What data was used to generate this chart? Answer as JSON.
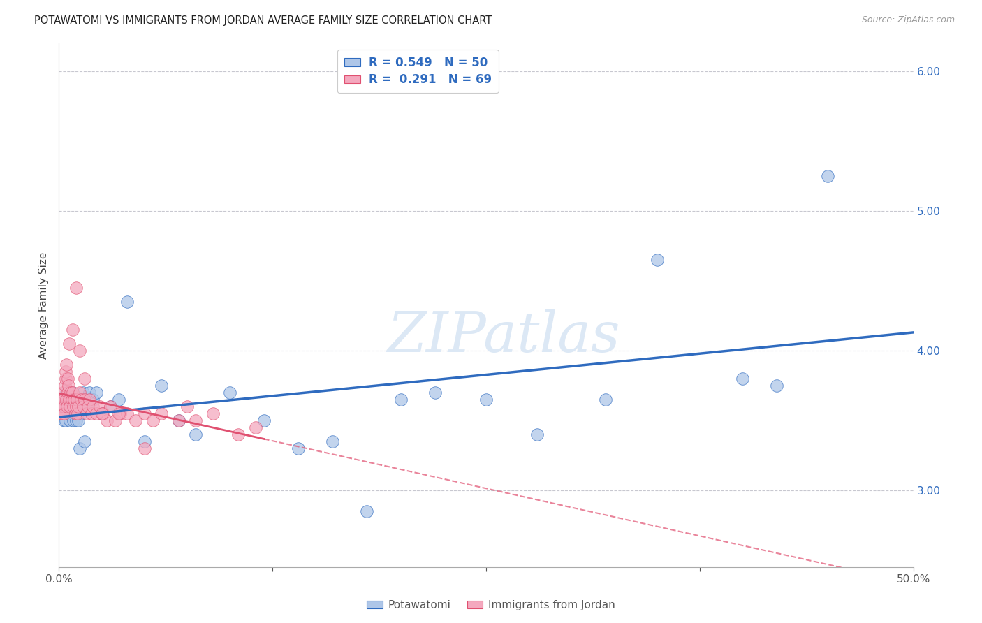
{
  "title": "POTAWATOMI VS IMMIGRANTS FROM JORDAN AVERAGE FAMILY SIZE CORRELATION CHART",
  "source": "Source: ZipAtlas.com",
  "ylabel": "Average Family Size",
  "xlim": [
    0.0,
    50.0
  ],
  "ylim": [
    2.45,
    6.2
  ],
  "yticks": [
    3.0,
    4.0,
    5.0,
    6.0
  ],
  "blue_R": "0.549",
  "blue_N": "50",
  "pink_R": "0.291",
  "pink_N": "69",
  "legend_label_blue": "Potawatomi",
  "legend_label_pink": "Immigrants from Jordan",
  "blue_color": "#aec6e8",
  "blue_line_color": "#2f6bbf",
  "pink_color": "#f4a8be",
  "pink_line_color": "#e05070",
  "watermark_color": "#dce8f5",
  "background_color": "#ffffff",
  "blue_scatter_x": [
    0.15,
    0.25,
    0.3,
    0.35,
    0.4,
    0.45,
    0.5,
    0.55,
    0.6,
    0.65,
    0.7,
    0.75,
    0.8,
    0.85,
    0.9,
    0.95,
    1.0,
    1.05,
    1.1,
    1.15,
    1.2,
    1.3,
    1.4,
    1.5,
    1.6,
    1.8,
    2.0,
    2.2,
    2.5,
    3.0,
    3.5,
    4.0,
    5.0,
    6.0,
    7.0,
    8.0,
    10.0,
    12.0,
    14.0,
    16.0,
    18.0,
    20.0,
    22.0,
    25.0,
    28.0,
    32.0,
    35.0,
    40.0,
    42.0,
    45.0
  ],
  "blue_scatter_y": [
    3.55,
    3.65,
    3.5,
    3.6,
    3.5,
    3.7,
    3.6,
    3.55,
    3.65,
    3.5,
    3.6,
    3.55,
    3.7,
    3.5,
    3.6,
    3.55,
    3.5,
    3.6,
    3.55,
    3.5,
    3.3,
    3.55,
    3.7,
    3.35,
    3.6,
    3.7,
    3.65,
    3.7,
    3.55,
    3.6,
    3.65,
    4.35,
    3.35,
    3.75,
    3.5,
    3.4,
    3.7,
    3.5,
    3.3,
    3.35,
    2.85,
    3.65,
    3.7,
    3.65,
    3.4,
    3.65,
    4.65,
    3.8,
    3.75,
    5.25
  ],
  "pink_scatter_x": [
    0.05,
    0.08,
    0.1,
    0.12,
    0.15,
    0.15,
    0.18,
    0.2,
    0.22,
    0.25,
    0.28,
    0.3,
    0.32,
    0.35,
    0.38,
    0.4,
    0.42,
    0.45,
    0.48,
    0.5,
    0.52,
    0.55,
    0.6,
    0.65,
    0.7,
    0.75,
    0.8,
    0.85,
    0.9,
    0.95,
    1.0,
    1.05,
    1.1,
    1.15,
    1.2,
    1.3,
    1.4,
    1.5,
    1.6,
    1.7,
    1.8,
    1.9,
    2.0,
    2.2,
    2.4,
    2.6,
    2.8,
    3.0,
    3.3,
    3.6,
    4.0,
    4.5,
    5.0,
    5.5,
    6.0,
    7.0,
    8.0,
    9.0,
    10.5,
    11.5,
    0.6,
    0.8,
    1.0,
    1.2,
    1.5,
    2.5,
    3.5,
    5.0,
    7.5
  ],
  "pink_scatter_y": [
    3.55,
    3.6,
    3.55,
    3.6,
    3.55,
    3.65,
    3.6,
    3.55,
    3.6,
    3.7,
    3.65,
    3.6,
    3.55,
    3.75,
    3.8,
    3.85,
    3.9,
    3.65,
    3.6,
    3.7,
    3.8,
    3.75,
    3.65,
    3.6,
    3.7,
    3.65,
    3.7,
    3.6,
    3.65,
    3.55,
    3.6,
    3.65,
    3.55,
    3.6,
    3.7,
    3.65,
    3.6,
    3.65,
    3.55,
    3.6,
    3.65,
    3.55,
    3.6,
    3.55,
    3.6,
    3.55,
    3.5,
    3.6,
    3.5,
    3.55,
    3.55,
    3.5,
    3.55,
    3.5,
    3.55,
    3.5,
    3.5,
    3.55,
    3.4,
    3.45,
    4.05,
    4.15,
    4.45,
    4.0,
    3.8,
    3.55,
    3.55,
    3.3,
    3.6
  ]
}
